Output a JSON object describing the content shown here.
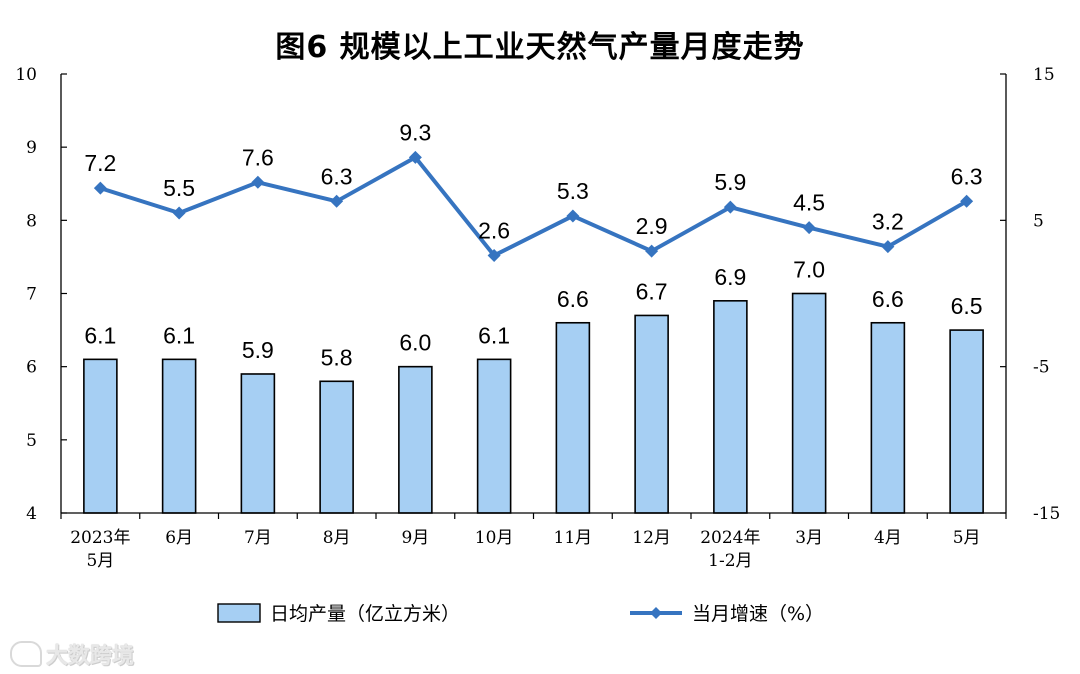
{
  "chart_data": {
    "type": "bar+line",
    "title": "图6  规模以上工业天然气产量月度走势",
    "categories": [
      [
        "2023年",
        "5月"
      ],
      [
        "6月"
      ],
      [
        "7月"
      ],
      [
        "8月"
      ],
      [
        "9月"
      ],
      [
        "10月"
      ],
      [
        "11月"
      ],
      [
        "12月"
      ],
      [
        "2024年",
        "1-2月"
      ],
      [
        "3月"
      ],
      [
        "4月"
      ],
      [
        "5月"
      ]
    ],
    "left_axis": {
      "min": 4,
      "max": 10,
      "ticks": [
        "4",
        "5",
        "6",
        "7",
        "8",
        "9",
        "10"
      ]
    },
    "right_axis": {
      "min": -15,
      "max": 15,
      "ticks": [
        "-15",
        "-5",
        "5",
        "15"
      ]
    },
    "series": [
      {
        "name": "日均产量（亿立方米）",
        "type": "bar",
        "axis": "left",
        "color": "#a6cff3",
        "values": [
          6.1,
          6.1,
          5.9,
          5.8,
          6.0,
          6.1,
          6.6,
          6.7,
          6.9,
          7.0,
          6.6,
          6.5
        ],
        "labels": [
          "6.1",
          "6.1",
          "5.9",
          "5.8",
          "6.0",
          "6.1",
          "6.6",
          "6.7",
          "6.9",
          "7.0",
          "6.6",
          "6.5"
        ]
      },
      {
        "name": "当月增速（%）",
        "type": "line",
        "axis": "right",
        "color": "#3674c0",
        "values": [
          7.2,
          5.5,
          7.6,
          6.3,
          9.3,
          2.6,
          5.3,
          2.9,
          5.9,
          4.5,
          3.2,
          6.3
        ],
        "labels": [
          "7.2",
          "5.5",
          "7.6",
          "6.3",
          "9.3",
          "2.6",
          "5.3",
          "2.9",
          "5.9",
          "4.5",
          "3.2",
          "6.3"
        ]
      }
    ],
    "legend_position": "bottom",
    "grid": false
  },
  "watermark": {
    "text": "大数跨境"
  }
}
